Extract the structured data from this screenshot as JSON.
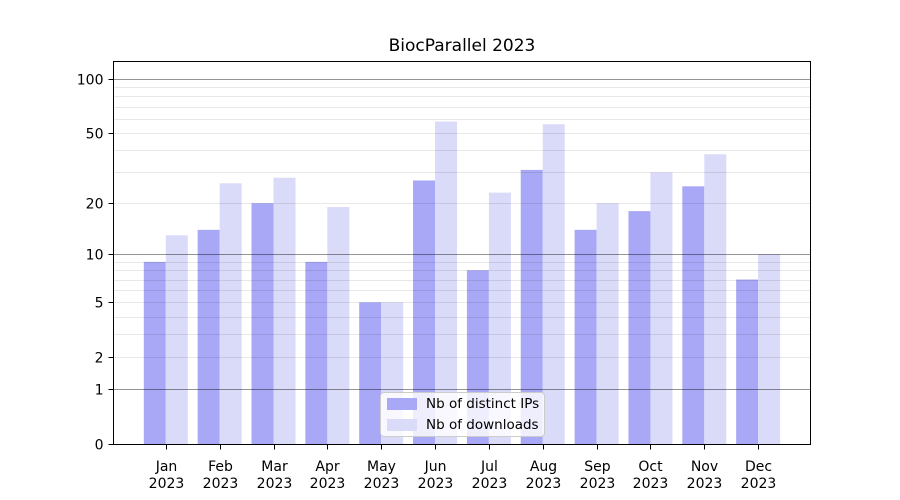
{
  "chart_data": {
    "type": "bar",
    "title": "BiocParallel 2023",
    "categories": [
      {
        "month": "Jan",
        "year": "2023"
      },
      {
        "month": "Feb",
        "year": "2023"
      },
      {
        "month": "Mar",
        "year": "2023"
      },
      {
        "month": "Apr",
        "year": "2023"
      },
      {
        "month": "May",
        "year": "2023"
      },
      {
        "month": "Jun",
        "year": "2023"
      },
      {
        "month": "Jul",
        "year": "2023"
      },
      {
        "month": "Aug",
        "year": "2023"
      },
      {
        "month": "Sep",
        "year": "2023"
      },
      {
        "month": "Oct",
        "year": "2023"
      },
      {
        "month": "Nov",
        "year": "2023"
      },
      {
        "month": "Dec",
        "year": "2023"
      }
    ],
    "series": [
      {
        "name": "Nb of distinct IPs",
        "color": "#a8a8f6",
        "values": [
          9,
          14,
          20,
          9,
          5,
          27,
          8,
          31,
          14,
          18,
          25,
          7
        ]
      },
      {
        "name": "Nb of downloads",
        "color": "#dadaf9",
        "values": [
          13,
          26,
          28,
          19,
          5,
          58,
          23,
          56,
          20,
          30,
          38,
          10
        ]
      }
    ],
    "y_axis": {
      "scale": "log1p",
      "ticks": [
        0,
        1,
        2,
        5,
        10,
        20,
        50,
        100
      ],
      "max": 124
    },
    "grid": {
      "minor": [
        2,
        3,
        4,
        5,
        6,
        7,
        8,
        9,
        20,
        30,
        40,
        50,
        60,
        70,
        80,
        90
      ],
      "major": [
        1,
        10,
        100
      ]
    },
    "legend_position": "lower center",
    "xlabel": "",
    "ylabel": ""
  }
}
